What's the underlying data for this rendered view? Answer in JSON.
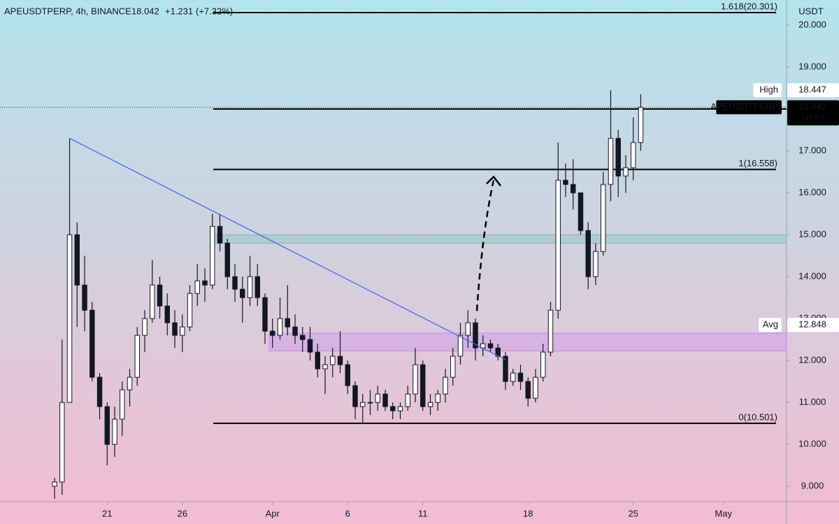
{
  "chart_data": {
    "type": "candlestick",
    "title": "APEUSDTPERP, 4h, BINANCE",
    "quote": {
      "values": [
        18.042,
        1.231,
        7.32
      ],
      "value_labels": [
        "18.042",
        "+1.231",
        "(+7.32%)"
      ],
      "color": "#5ba15d"
    },
    "currency": "USDT",
    "up_color": "#ffffff",
    "down_color": "#131722",
    "open": [
      9.0,
      9.1,
      11.0,
      15.0,
      13.8,
      13.2,
      11.6,
      10.9,
      10.0,
      10.6,
      11.3,
      11.6,
      12.6,
      13.0,
      13.8,
      13.3,
      12.9,
      12.6,
      12.8,
      13.6,
      13.9,
      13.8,
      15.2,
      14.8,
      14.0,
      13.7,
      13.5,
      14.0,
      13.5,
      12.7,
      12.6,
      13.0,
      12.8,
      12.6,
      12.5,
      12.2,
      11.8,
      11.9,
      12.1,
      11.9,
      11.4,
      10.9,
      11.0,
      11.0,
      11.2,
      10.9,
      10.8,
      10.9,
      11.2,
      11.9,
      10.9,
      11.0,
      11.2,
      11.6,
      12.1,
      12.6,
      12.9,
      12.3,
      12.4,
      12.3,
      12.1,
      11.5,
      11.7,
      11.5,
      11.1,
      11.6,
      12.2,
      13.2,
      16.3,
      16.2,
      16.0,
      15.1,
      14.0,
      14.6,
      16.2,
      17.3,
      16.4,
      16.6,
      17.2
    ],
    "high": [
      9.2,
      12.5,
      17.3,
      15.3,
      14.5,
      13.4,
      11.7,
      11.0,
      10.9,
      11.5,
      11.8,
      12.8,
      13.2,
      14.4,
      14.0,
      13.6,
      13.2,
      13.1,
      13.8,
      14.3,
      14.2,
      15.5,
      15.5,
      14.9,
      14.3,
      14.0,
      14.5,
      14.3,
      13.6,
      13.0,
      13.5,
      13.8,
      13.1,
      12.8,
      12.8,
      12.4,
      12.1,
      12.3,
      12.7,
      12.0,
      11.5,
      11.2,
      11.3,
      11.4,
      11.3,
      11.0,
      11.0,
      11.4,
      12.3,
      12.0,
      11.2,
      11.3,
      11.8,
      12.3,
      12.9,
      13.2,
      13.0,
      12.6,
      12.5,
      12.4,
      12.2,
      11.8,
      11.9,
      11.6,
      11.8,
      12.4,
      13.4,
      17.2,
      16.7,
      16.8,
      16.0,
      15.3,
      14.8,
      16.5,
      18.447,
      17.5,
      16.9,
      17.8,
      18.35
    ],
    "low": [
      8.7,
      8.8,
      11.0,
      12.8,
      12.7,
      11.5,
      10.6,
      9.5,
      9.7,
      10.2,
      10.9,
      11.4,
      12.2,
      12.9,
      13.0,
      12.6,
      12.3,
      12.2,
      12.7,
      13.3,
      13.4,
      13.7,
      14.6,
      13.7,
      13.4,
      12.9,
      13.3,
      13.3,
      12.4,
      12.3,
      12.5,
      12.6,
      12.4,
      12.2,
      12.0,
      11.6,
      11.2,
      11.6,
      11.7,
      11.2,
      10.6,
      10.5,
      10.7,
      10.8,
      10.8,
      10.6,
      10.6,
      10.8,
      11.0,
      10.8,
      10.7,
      10.8,
      11.0,
      11.4,
      11.9,
      12.3,
      12.0,
      12.1,
      12.2,
      12.0,
      11.3,
      11.4,
      11.3,
      10.9,
      11.0,
      11.5,
      12.1,
      13.0,
      15.9,
      15.6,
      15.0,
      13.7,
      13.8,
      14.5,
      15.8,
      15.9,
      16.0,
      16.3,
      17.0
    ],
    "close": [
      9.1,
      11.0,
      15.0,
      13.8,
      13.2,
      11.6,
      10.9,
      10.0,
      10.6,
      11.3,
      11.6,
      12.6,
      13.0,
      13.8,
      13.3,
      12.9,
      12.6,
      12.8,
      13.6,
      13.9,
      13.8,
      15.2,
      14.8,
      14.0,
      13.7,
      13.5,
      14.0,
      13.5,
      12.7,
      12.6,
      13.0,
      12.8,
      12.6,
      12.5,
      12.2,
      11.8,
      11.9,
      12.1,
      11.9,
      11.4,
      10.9,
      11.0,
      11.0,
      11.2,
      10.9,
      10.8,
      10.9,
      11.2,
      11.9,
      10.9,
      11.0,
      11.2,
      11.6,
      12.1,
      12.6,
      12.9,
      12.3,
      12.4,
      12.3,
      12.1,
      11.5,
      11.7,
      11.5,
      11.1,
      11.6,
      12.2,
      13.2,
      16.3,
      16.2,
      16.0,
      15.1,
      14.0,
      14.6,
      16.2,
      17.3,
      16.4,
      16.6,
      17.2,
      18.042
    ],
    "xlim": [
      -7.26,
      97.4
    ],
    "xticks": [
      {
        "value": 7,
        "label": "21"
      },
      {
        "value": 17,
        "label": "26"
      },
      {
        "value": 29,
        "label": "Apr"
      },
      {
        "value": 39,
        "label": "6"
      },
      {
        "value": 49,
        "label": "11"
      },
      {
        "value": 63,
        "label": "18"
      },
      {
        "value": 77,
        "label": "25"
      },
      {
        "value": 89,
        "label": "May"
      }
    ],
    "ylim": [
      8.633,
      20.6
    ],
    "yticks": [
      {
        "value": 9,
        "label": "9.000"
      },
      {
        "value": 10,
        "label": "10.000"
      },
      {
        "value": 11,
        "label": "11.000"
      },
      {
        "value": 12,
        "label": "12.000"
      },
      {
        "value": 13,
        "label": "13.000"
      },
      {
        "value": 14,
        "label": "14.000"
      },
      {
        "value": 15,
        "label": "15.000"
      },
      {
        "value": 16,
        "label": "16.000"
      },
      {
        "value": 17,
        "label": "17.000"
      },
      {
        "value": 18,
        "label": "18.000"
      },
      {
        "value": 19,
        "label": "19.000"
      },
      {
        "value": 20,
        "label": "20.000"
      }
    ],
    "fib_levels": [
      {
        "label": "1.618(20.301)",
        "value": 20.301
      },
      {
        "label": "1(16.558)",
        "value": 16.558
      },
      {
        "label": "0(10.501)",
        "value": 10.501
      }
    ],
    "hlines": [
      18.0
    ],
    "zones": [
      {
        "from": 14.8,
        "to": 15.0,
        "color": "#8ec3c3"
      },
      {
        "from": 12.23,
        "to": 12.65,
        "color": "#cf97ea"
      }
    ],
    "trendline": {
      "x": [
        2,
        60
      ],
      "y": [
        17.3,
        12.02
      ],
      "color": "#3d6ef0"
    },
    "markers": [
      {
        "label": "High",
        "value": 18.447,
        "bg": "#ffffff",
        "fg": "#131722"
      },
      {
        "label": "APEUSDTPERP",
        "value": 18.042,
        "time": "10:33",
        "bg": "#000000",
        "fg": "#ffffff"
      },
      {
        "label": "Avg",
        "value": 12.848,
        "bg": "#ffffff",
        "fg": "#131722"
      }
    ]
  }
}
